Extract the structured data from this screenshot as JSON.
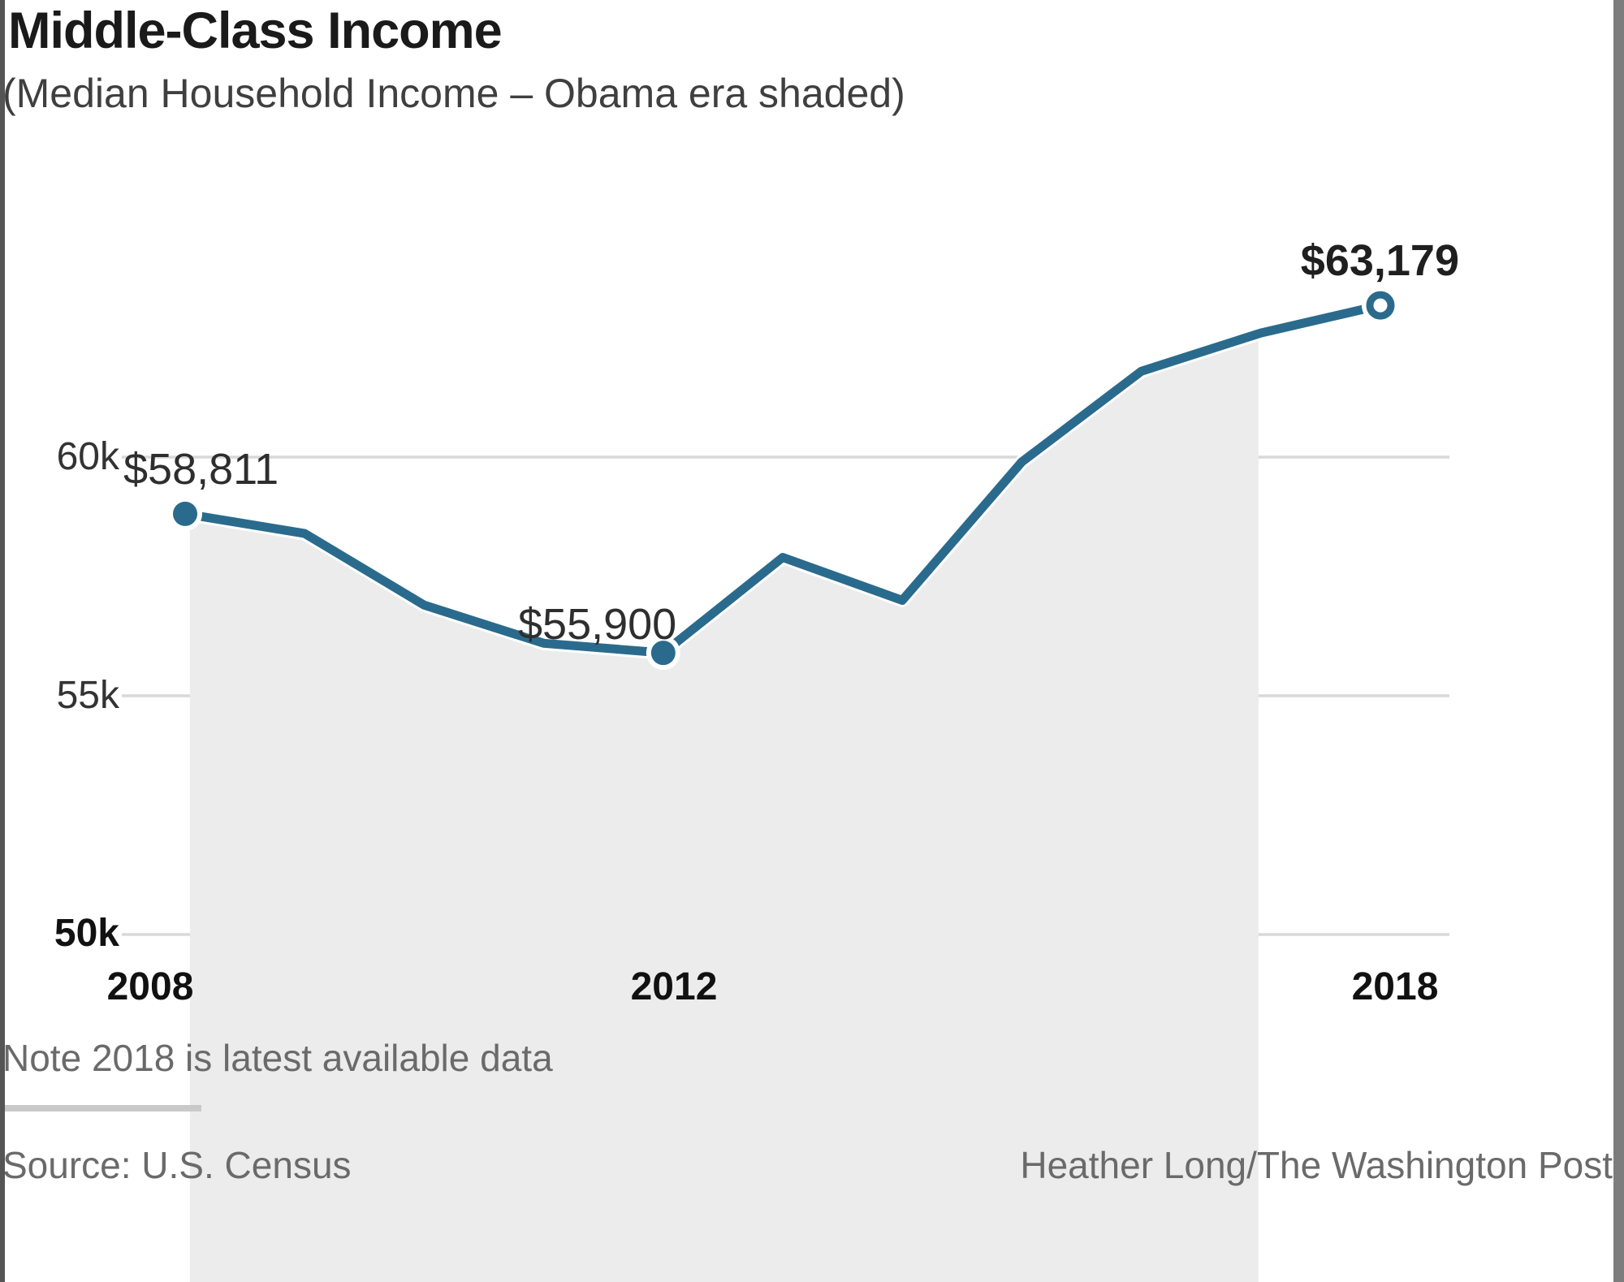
{
  "header": {
    "title": "Middle-Class Income",
    "subtitle": "(Median Household Income – Obama era shaded)"
  },
  "chart_data": {
    "type": "line",
    "title": "Middle-Class Income",
    "subtitle": "(Median Household Income – Obama era shaded)",
    "x": [
      2008,
      2009,
      2010,
      2011,
      2012,
      2013,
      2014,
      2015,
      2016,
      2017,
      2018
    ],
    "series": [
      {
        "name": "Median household income",
        "values": [
          58811,
          58400,
          56900,
          56100,
          55900,
          57900,
          57000,
          59900,
          61800,
          62600,
          63179
        ]
      }
    ],
    "ylim": [
      50000,
      65000
    ],
    "grid": true,
    "legend": "none",
    "y_ticks": [
      {
        "label": "60k",
        "value": 60000
      },
      {
        "label": "55k",
        "value": 55000
      },
      {
        "label": "50k",
        "value": 50000
      }
    ],
    "x_ticks": [
      {
        "label": "2008",
        "year": 2008
      },
      {
        "label": "2012",
        "year": 2012
      },
      {
        "label": "2018",
        "year": 2018
      }
    ],
    "point_labels": [
      {
        "year": 2008,
        "value": 58811,
        "label": "$58,811",
        "marker": "filled"
      },
      {
        "year": 2012,
        "value": 55900,
        "label": "$55,900",
        "marker": "filled"
      },
      {
        "year": 2018,
        "value": 63179,
        "label": "$63,179",
        "marker": "open"
      }
    ],
    "shaded_region": {
      "name": "Obama era",
      "start_year": 2008.04,
      "end_year": 2016.98
    },
    "colors": {
      "line": "#2a6b8d",
      "shade": "#ececec",
      "grid": "#d9d9d9",
      "halo": "#ffffff"
    }
  },
  "footer": {
    "note": "Note 2018 is latest available data",
    "source": "Source: U.S. Census",
    "credit": "Heather Long/The Washington Post"
  }
}
